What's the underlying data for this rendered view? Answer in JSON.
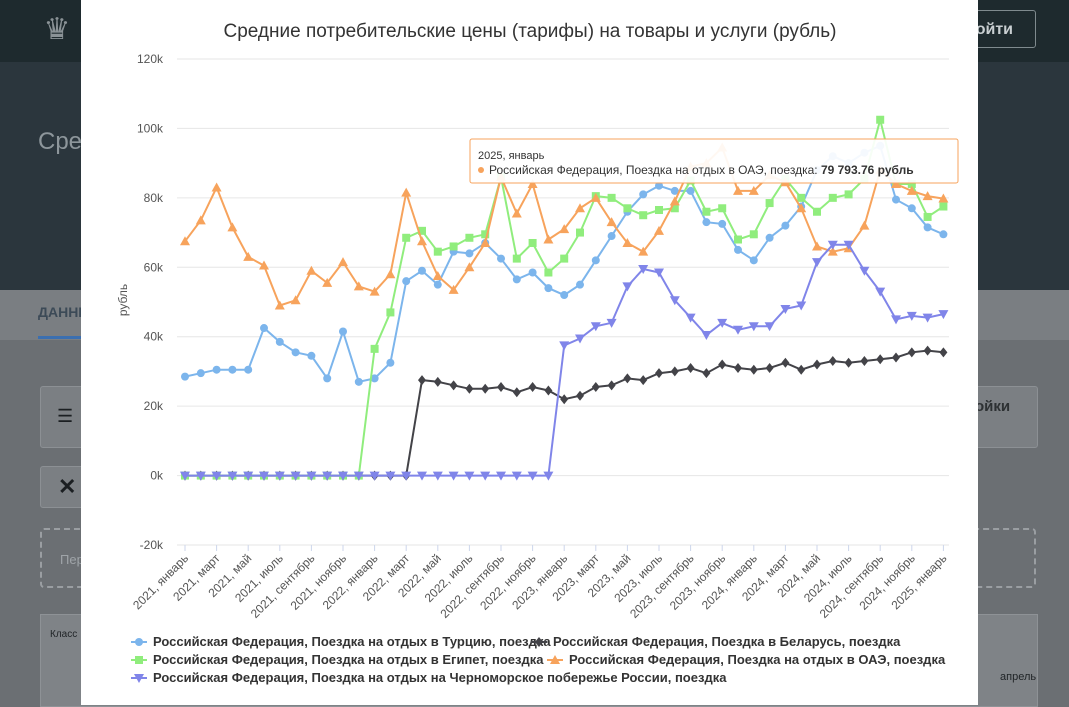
{
  "background": {
    "login_label": "Войти",
    "hero_title": "Сред… услу…",
    "tab_label": "ДАННЫЕ",
    "settings_label": "ойки",
    "dashed_hint": "Пер",
    "table_header": "Класс",
    "table_cell": "апрель"
  },
  "tooltip": {
    "date": "2025, январь",
    "series": "Российская Федерация, Поездка на отдых в ОАЭ, поездка:",
    "value": "79 793.76 рубль"
  },
  "chart_data": {
    "type": "line",
    "title": "Средние потребительские цены (тарифы) на товары и услуги (рубль)",
    "ylabel": "рубль",
    "xlabel": "",
    "ylim": [
      -20000,
      120000
    ],
    "y_ticks": [
      "-20k",
      "0k",
      "20k",
      "40k",
      "60k",
      "80k",
      "100k",
      "120k"
    ],
    "y_tick_values": [
      -20000,
      0,
      20000,
      40000,
      60000,
      80000,
      100000,
      120000
    ],
    "grid": true,
    "legend": "bottom",
    "x_tick_labels": [
      "2021, январь",
      "2021, март",
      "2021, май",
      "2021, июль",
      "2021, сентябрь",
      "2021, ноябрь",
      "2022, январь",
      "2022, март",
      "2022, май",
      "2022, июль",
      "2022, сентябрь",
      "2022, ноябрь",
      "2023, январь",
      "2023, март",
      "2023, май",
      "2023, июль",
      "2023, сентябрь",
      "2023, ноябрь",
      "2024, январь",
      "2024, март",
      "2024, май",
      "2024, июль",
      "2024, сентябрь",
      "2024, ноябрь",
      "2025, январь"
    ],
    "series": [
      {
        "name": "Российская Федерация, Поездка на отдых в Турцию, поездка",
        "color": "#7cb5ec",
        "marker": "circle",
        "values": [
          28500,
          29500,
          30500,
          30500,
          30500,
          42500,
          38500,
          35500,
          34500,
          28000,
          41500,
          27000,
          28000,
          32500,
          56000,
          59000,
          55000,
          64500,
          64000,
          67000,
          62500,
          56500,
          58500,
          54000,
          52000,
          55000,
          62000,
          69000,
          76000,
          81000,
          83500,
          82000,
          82000,
          73000,
          72500,
          65000,
          62000,
          68500,
          72000,
          77500,
          88000,
          92000,
          90000,
          93000,
          95000,
          79500,
          77000,
          71500,
          69500
        ]
      },
      {
        "name": "Российская Федерация, Поездка в Беларусь, поездка",
        "color": "#434348",
        "marker": "diamond",
        "values": [
          0,
          0,
          0,
          0,
          0,
          0,
          0,
          0,
          0,
          0,
          0,
          0,
          0,
          0,
          0,
          27500,
          27000,
          26000,
          25000,
          25000,
          25500,
          24000,
          25500,
          24500,
          22000,
          23000,
          25500,
          26000,
          28000,
          27500,
          29500,
          30000,
          31000,
          29500,
          32000,
          31000,
          30500,
          31000,
          32500,
          30500,
          32000,
          33000,
          32500,
          33000,
          33500,
          34000,
          35500,
          36000,
          35500
        ]
      },
      {
        "name": "Российская Федерация, Поездка на отдых в Египет, поездка",
        "color": "#90ed7d",
        "marker": "square",
        "values": [
          0,
          0,
          0,
          0,
          0,
          0,
          0,
          0,
          0,
          0,
          0,
          0,
          36500,
          47000,
          68500,
          70500,
          64500,
          66000,
          68500,
          69500,
          86000,
          62500,
          67000,
          58500,
          62500,
          70000,
          80500,
          80000,
          77000,
          75000,
          76500,
          77000,
          85000,
          76000,
          77000,
          68000,
          69500,
          78500,
          85500,
          80000,
          76000,
          80000,
          81000,
          85500,
          102500,
          84000,
          84000,
          74500,
          77500
        ]
      },
      {
        "name": "Российская Федерация, Поездка на отдых в ОАЭ, поездка",
        "color": "#f7a35c",
        "marker": "triangle",
        "values": [
          67500,
          73500,
          83000,
          71500,
          63000,
          60500,
          49000,
          50500,
          59000,
          55500,
          61500,
          54500,
          53000,
          58000,
          81500,
          67500,
          57500,
          53500,
          60000,
          67000,
          86000,
          75500,
          84000,
          68000,
          71000,
          77000,
          80000,
          73000,
          67000,
          64500,
          70500,
          79000,
          89000,
          90000,
          94500,
          82000,
          82000,
          86500,
          84500,
          77000,
          66000,
          64500,
          65500,
          72000,
          88000,
          84000,
          82000,
          80500,
          79800
        ]
      },
      {
        "name": "Российская Федерация, Поездка на отдых на Черноморское побережье России, поездка",
        "color": "#8085e9",
        "marker": "triangle-down",
        "values": [
          0,
          0,
          0,
          0,
          0,
          0,
          0,
          0,
          0,
          0,
          0,
          0,
          0,
          0,
          0,
          0,
          0,
          0,
          0,
          0,
          0,
          0,
          0,
          0,
          37500,
          39500,
          43000,
          44000,
          54500,
          59500,
          58500,
          50500,
          45500,
          40500,
          44000,
          42000,
          43000,
          43000,
          48000,
          49000,
          61500,
          66500,
          66500,
          59000,
          53000,
          45000,
          46000,
          45500,
          46500
        ]
      }
    ]
  }
}
